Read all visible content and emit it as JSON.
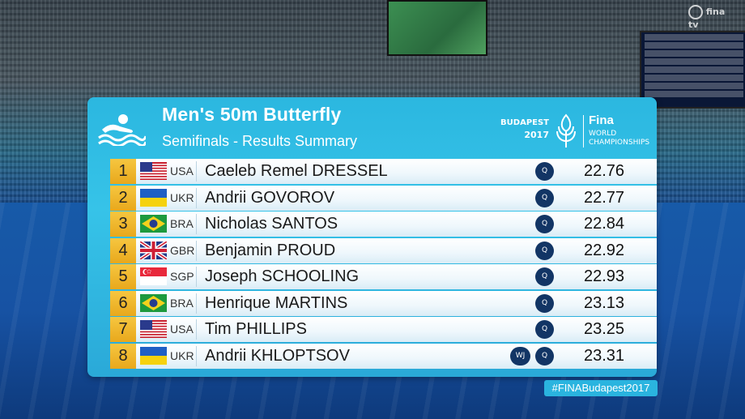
{
  "header": {
    "title": "Men's 50m Butterfly",
    "subtitle": "Semifinals - Results Summary"
  },
  "event_brand": {
    "city": "BUDAPEST",
    "year": "2017",
    "fina": "Fina",
    "world": "WORLD",
    "championships": "CHAMPIONSHIPS"
  },
  "results": [
    {
      "rank": "1",
      "country": "USA",
      "name": "Caeleb Remel DRESSEL",
      "qualifier": "Q",
      "record": "",
      "time": "22.76"
    },
    {
      "rank": "2",
      "country": "UKR",
      "name": "Andrii GOVOROV",
      "qualifier": "Q",
      "record": "",
      "time": "22.77"
    },
    {
      "rank": "3",
      "country": "BRA",
      "name": "Nicholas SANTOS",
      "qualifier": "Q",
      "record": "",
      "time": "22.84"
    },
    {
      "rank": "4",
      "country": "GBR",
      "name": "Benjamin PROUD",
      "qualifier": "Q",
      "record": "",
      "time": "22.92"
    },
    {
      "rank": "5",
      "country": "SGP",
      "name": "Joseph SCHOOLING",
      "qualifier": "Q",
      "record": "",
      "time": "22.93"
    },
    {
      "rank": "6",
      "country": "BRA",
      "name": "Henrique MARTINS",
      "qualifier": "Q",
      "record": "",
      "time": "23.13"
    },
    {
      "rank": "7",
      "country": "USA",
      "name": "Tim PHILLIPS",
      "qualifier": "Q",
      "record": "",
      "time": "23.25"
    },
    {
      "rank": "8",
      "country": "UKR",
      "name": "Andrii KHLOPTSOV",
      "qualifier": "Q",
      "record": "WJ",
      "time": "23.31"
    }
  ],
  "hashtag": "#FINABudapest2017",
  "broadcaster": "fina tv",
  "colors": {
    "panel": "#2bb7e0",
    "rank_gold": "#f0b82e",
    "badge": "#123565"
  }
}
